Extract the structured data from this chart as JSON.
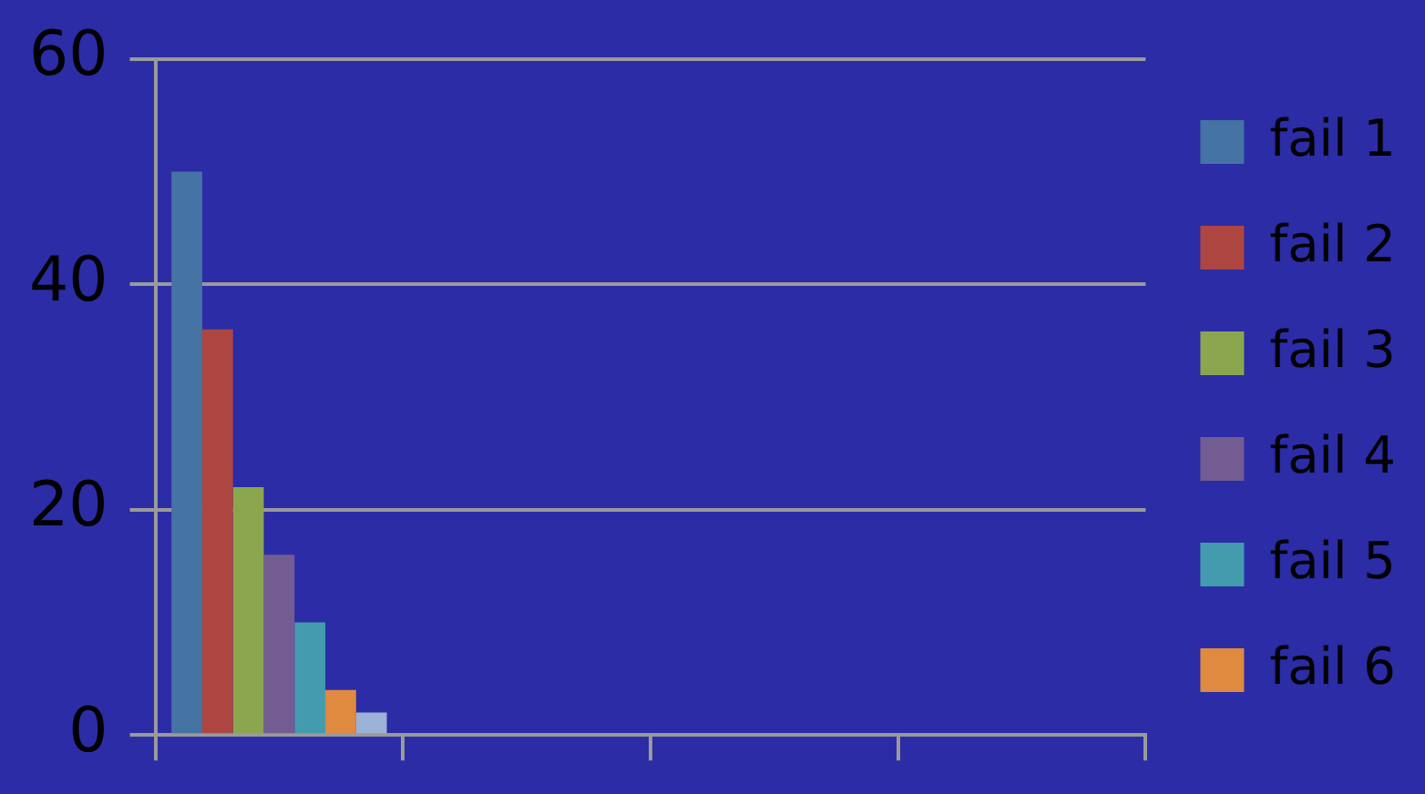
{
  "chart_data": {
    "type": "bar",
    "categories": [
      null,
      null,
      null,
      null
    ],
    "series": [
      {
        "name": "fail 1",
        "color": "#4473a4",
        "values": [
          50,
          null,
          null,
          null
        ]
      },
      {
        "name": "fail 2",
        "color": "#ad4641",
        "values": [
          36,
          null,
          null,
          null
        ]
      },
      {
        "name": "fail 3",
        "color": "#8ba64f",
        "values": [
          22,
          null,
          null,
          null
        ]
      },
      {
        "name": "fail 4",
        "color": "#735c91",
        "values": [
          16,
          null,
          null,
          null
        ]
      },
      {
        "name": "fail 5",
        "color": "#449bae",
        "values": [
          10,
          null,
          null,
          null
        ]
      },
      {
        "name": "fail 6",
        "color": "#e08a40",
        "values": [
          4,
          null,
          null,
          null
        ]
      },
      {
        "color": "#9bb1d6",
        "values": [
          2,
          null,
          null,
          null
        ]
      }
    ],
    "ylim": [
      0,
      60
    ],
    "yticks": [
      0,
      20,
      40,
      60
    ],
    "grid": "y",
    "legend": "right"
  }
}
